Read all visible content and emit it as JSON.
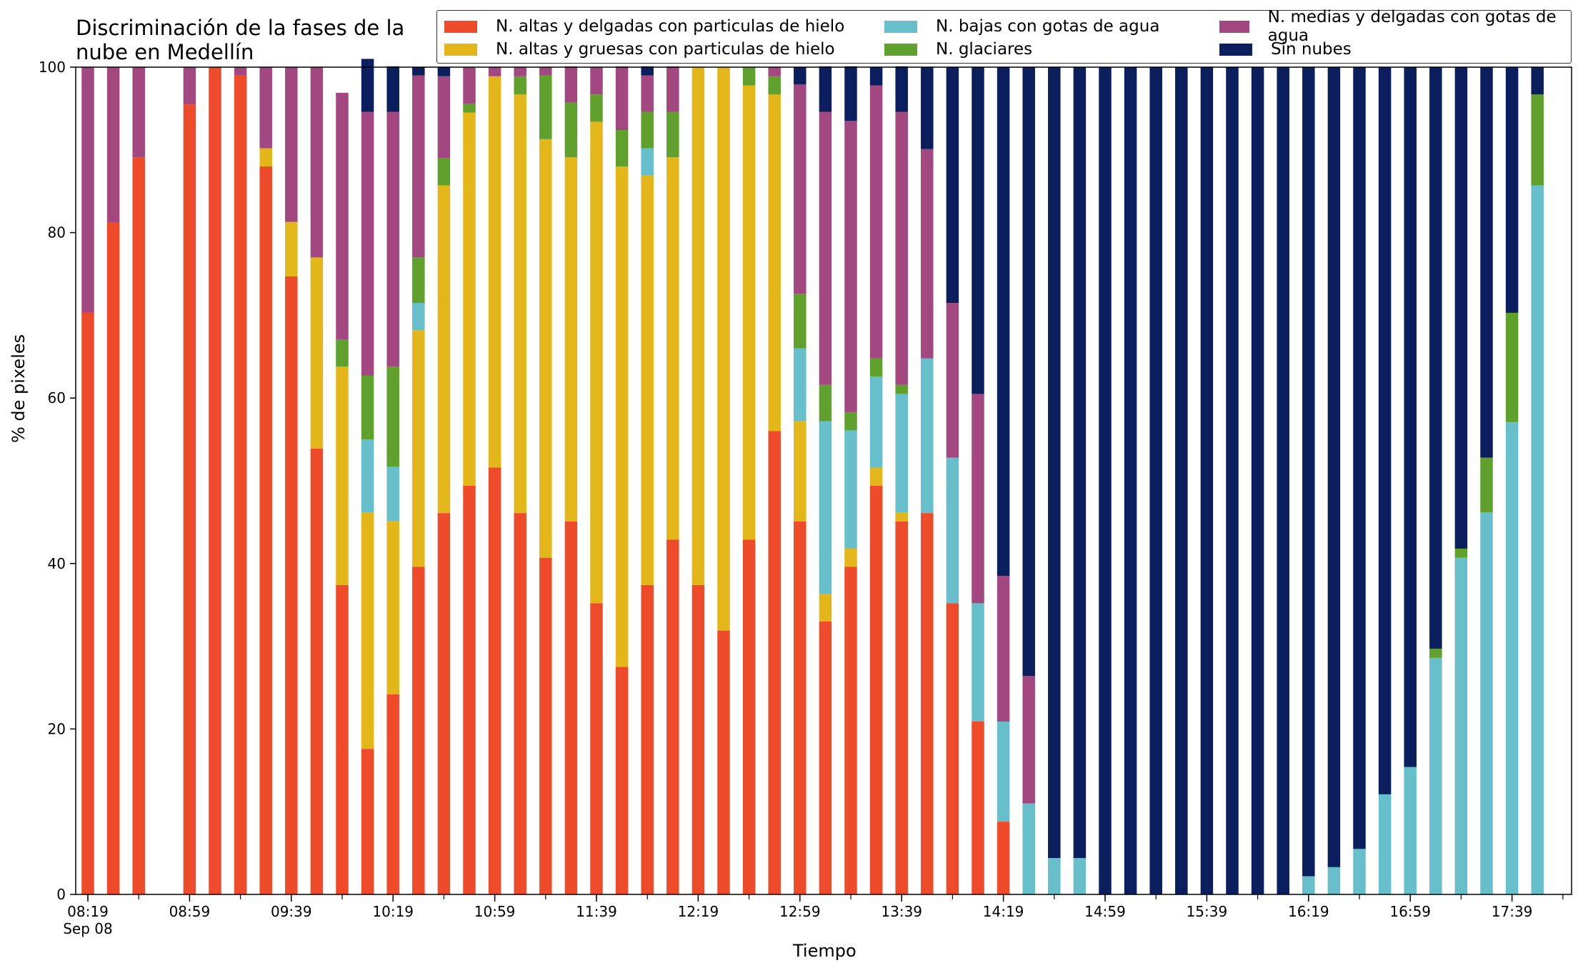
{
  "chart_data": {
    "type": "bar",
    "stacked": true,
    "title": "Discriminación de la fases de la\nnube en Medellín",
    "xlabel": "Tiempo",
    "ylabel": "% de pixeles",
    "ylim": [
      0,
      100
    ],
    "yticks": [
      0,
      20,
      40,
      60,
      80,
      100
    ],
    "xtick_labels": [
      "08:19\nSep 08",
      "08:59",
      "09:39",
      "10:19",
      "10:59",
      "11:39",
      "12:19",
      "12:59",
      "13:39",
      "14:19",
      "14:59",
      "15:39",
      "16:19",
      "16:59",
      "17:39"
    ],
    "legend_position": "top-right",
    "bar_interval_minutes": 10,
    "series": [
      {
        "name": "N. altas y delgadas con particulas de hielo",
        "color": "#ee4b2b",
        "values": [
          70.3,
          81.2,
          89.1,
          0,
          95.5,
          100,
          99,
          88,
          74.7,
          53.9,
          37.4,
          17.6,
          24.2,
          39.6,
          46.1,
          49.4,
          51.6,
          46.1,
          40.7,
          45.1,
          35.2,
          27.5,
          37.4,
          42.9,
          37.4,
          31.9,
          42.9,
          56,
          45.1,
          33,
          39.6,
          49.4,
          45.1,
          46.1,
          35.2,
          20.9,
          8.8,
          0,
          0,
          0,
          0,
          0,
          0,
          0,
          0,
          0,
          0,
          0,
          0,
          0,
          0,
          0,
          0,
          0,
          0,
          0,
          0,
          0
        ]
      },
      {
        "name": "N. altas y gruesas con particulas de hielo",
        "color": "#e3b71a",
        "values": [
          0,
          0,
          0,
          0,
          0,
          0,
          0,
          2.2,
          6.6,
          23.1,
          26.4,
          28.6,
          20.9,
          28.6,
          39.6,
          45.1,
          47.3,
          50.6,
          50.6,
          44,
          58.2,
          60.5,
          49.5,
          46.2,
          62.6,
          68.1,
          54.9,
          40.7,
          12.1,
          3.3,
          2.2,
          2.2,
          1.1,
          0,
          0,
          0,
          0,
          0,
          0,
          0,
          0,
          0,
          0,
          0,
          0,
          0,
          0,
          0,
          0,
          0,
          0,
          0,
          0,
          0,
          0,
          0,
          0,
          0
        ]
      },
      {
        "name": "N. bajas con gotas de agua",
        "color": "#66bfca",
        "values": [
          0,
          0,
          0,
          0,
          0,
          0,
          0,
          0,
          0,
          0,
          0,
          8.8,
          6.6,
          3.3,
          0,
          0,
          0,
          0,
          0,
          0,
          0,
          0,
          3.3,
          0,
          0,
          0,
          0,
          0,
          8.8,
          20.9,
          14.3,
          11,
          14.3,
          18.7,
          17.6,
          14.3,
          12.1,
          11,
          4.4,
          4.4,
          0,
          0,
          0,
          0,
          0,
          0,
          0,
          0,
          2.2,
          3.3,
          5.5,
          12.1,
          15.4,
          28.6,
          40.7,
          46.2,
          57.1,
          85.7
        ]
      },
      {
        "name": "N. glaciares",
        "color": "#5fa12c",
        "values": [
          0,
          0,
          0,
          0,
          0,
          0,
          0,
          0,
          0,
          0,
          3.3,
          7.7,
          12.1,
          5.5,
          3.3,
          1.1,
          0,
          2.2,
          7.7,
          6.6,
          3.3,
          4.4,
          4.4,
          5.5,
          0,
          0,
          2.2,
          2.2,
          6.6,
          4.4,
          2.2,
          2.2,
          1.1,
          0,
          0,
          0,
          0,
          0,
          0,
          0,
          0,
          0,
          0,
          0,
          0,
          0,
          0,
          0,
          0,
          0,
          0,
          0,
          0,
          1.1,
          1.1,
          6.6,
          13.2,
          11
        ]
      },
      {
        "name": "N. medias y delgadas con gotas de agua",
        "color": "#a34780",
        "values": [
          29.7,
          18.8,
          10.9,
          0,
          4.5,
          0,
          1,
          9.8,
          18.7,
          23,
          29.8,
          31.9,
          30.8,
          22,
          9.9,
          4.4,
          1.1,
          1.1,
          1,
          4.4,
          3.3,
          7.7,
          4.4,
          5.5,
          0,
          0,
          0,
          1.1,
          25.3,
          33,
          35.2,
          33,
          33,
          25.3,
          18.7,
          25.3,
          17.6,
          15.4,
          0,
          0,
          0,
          0,
          0,
          0,
          0,
          0,
          0,
          0,
          0,
          0,
          0,
          0,
          0,
          0,
          0,
          0,
          0,
          0
        ]
      },
      {
        "name": "Sin nubes",
        "color": "#0b1f5e",
        "values": [
          0,
          0,
          0,
          0,
          0,
          0,
          0,
          0,
          0,
          0,
          0,
          6.4,
          5.5,
          1,
          1.1,
          0,
          0,
          0,
          0,
          0,
          0,
          0,
          1.1,
          0,
          0,
          0,
          0,
          0,
          2.1,
          5.5,
          6.6,
          2.2,
          5.5,
          9.9,
          28.5,
          39.5,
          61.5,
          73.6,
          95.6,
          95.6,
          100,
          100,
          100,
          100,
          100,
          100,
          100,
          100,
          97.8,
          96.7,
          94.5,
          87.9,
          84.6,
          70.3,
          58.2,
          47.2,
          29.7,
          3.3
        ]
      }
    ]
  }
}
